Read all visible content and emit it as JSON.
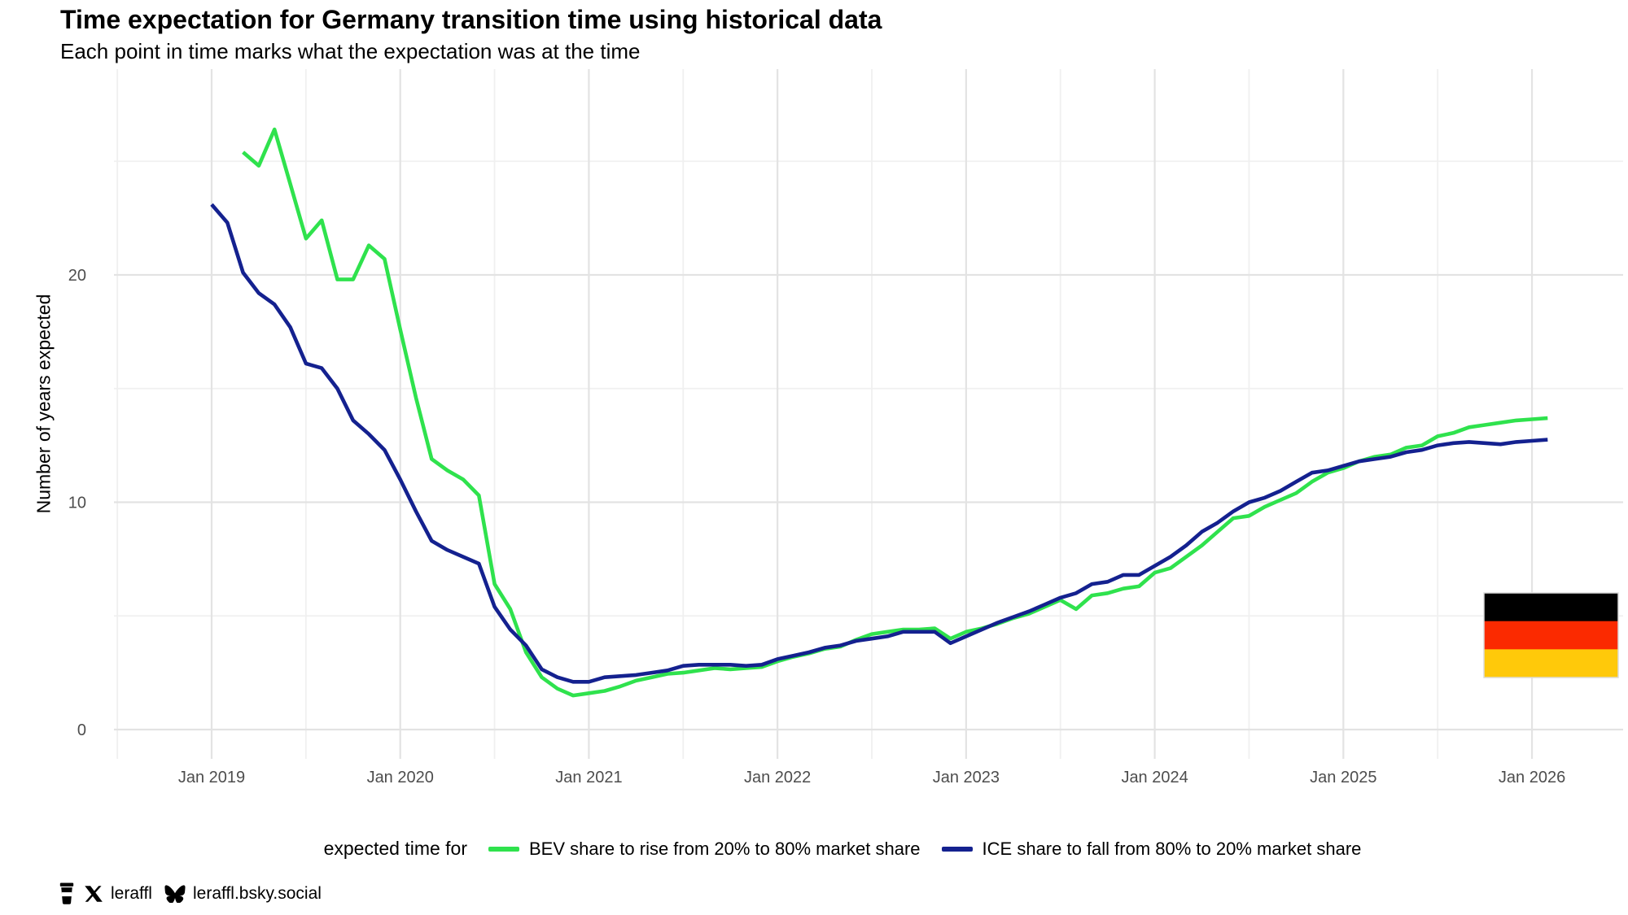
{
  "page": {
    "title": "Time expectation for Germany transition time using historical data",
    "subtitle": "Each point in time marks what the expectation was at the time"
  },
  "chart_data": {
    "type": "line",
    "title": "Time expectation for Germany transition time using historical data",
    "subtitle": "Each point in time marks what the expectation was at the time",
    "ylabel": "Number of years expected",
    "x_axis": {
      "tick_labels": [
        "Jan 2019",
        "Jan 2020",
        "Jan 2021",
        "Jan 2022",
        "Jan 2023",
        "Jan 2024",
        "Jan 2025",
        "Jan 2026"
      ],
      "minor_gridlines": "July of each year"
    },
    "y_axis": {
      "ticks": [
        0,
        10,
        20
      ],
      "minor": [
        5,
        15,
        25
      ],
      "range": [
        0,
        29
      ]
    },
    "grid": "light gray on white, ggplot-minimal style",
    "legend_position": "bottom",
    "series": [
      {
        "id": "bev",
        "name": "BEV share to rise from 20% to 80% market share",
        "color": "#2FE24D",
        "start_month": "2019-03",
        "end_month": "2026-02",
        "unit": "years",
        "monthly_values": [
          25.4,
          24.8,
          26.4,
          24.0,
          21.6,
          22.4,
          19.8,
          19.8,
          21.3,
          20.7,
          17.6,
          14.6,
          11.9,
          11.4,
          11.0,
          10.3,
          6.4,
          5.3,
          3.4,
          2.3,
          1.8,
          1.5,
          1.6,
          1.7,
          1.9,
          2.15,
          2.3,
          2.45,
          2.5,
          2.6,
          2.7,
          2.65,
          2.7,
          2.75,
          3.0,
          3.2,
          3.35,
          3.55,
          3.65,
          3.95,
          4.2,
          4.3,
          4.4,
          4.4,
          4.45,
          4.0,
          4.3,
          4.45,
          4.65,
          4.9,
          5.1,
          5.4,
          5.7,
          5.3,
          5.9,
          6.0,
          6.2,
          6.3,
          6.9,
          7.1,
          7.6,
          8.1,
          8.7,
          9.3,
          9.4,
          9.8,
          10.1,
          10.4,
          10.9,
          11.3,
          11.5,
          11.8,
          12.0,
          12.1,
          12.4,
          12.5,
          12.9,
          13.05,
          13.3,
          13.4,
          13.5,
          13.6,
          13.65,
          13.7
        ]
      },
      {
        "id": "ice",
        "name": "ICE share to fall from 80% to 20% market share",
        "color": "#14218F",
        "start_month": "2019-01",
        "end_month": "2026-02",
        "unit": "years",
        "monthly_values": [
          23.1,
          22.3,
          20.1,
          19.2,
          18.7,
          17.7,
          16.1,
          15.9,
          15.0,
          13.6,
          13.0,
          12.3,
          11.0,
          9.6,
          8.3,
          7.9,
          7.6,
          7.3,
          5.4,
          4.4,
          3.7,
          2.65,
          2.3,
          2.1,
          2.1,
          2.3,
          2.35,
          2.4,
          2.5,
          2.6,
          2.8,
          2.85,
          2.85,
          2.85,
          2.8,
          2.85,
          3.1,
          3.25,
          3.4,
          3.6,
          3.7,
          3.9,
          4.0,
          4.1,
          4.3,
          4.3,
          4.3,
          3.8,
          4.1,
          4.4,
          4.7,
          4.95,
          5.2,
          5.5,
          5.8,
          6.0,
          6.4,
          6.5,
          6.8,
          6.8,
          7.2,
          7.6,
          8.1,
          8.7,
          9.1,
          9.6,
          10.0,
          10.2,
          10.5,
          10.9,
          11.3,
          11.4,
          11.6,
          11.8,
          11.9,
          12.0,
          12.2,
          12.3,
          12.5,
          12.6,
          12.65,
          12.6,
          12.55,
          12.65,
          12.7,
          12.75
        ]
      }
    ],
    "annotation": {
      "type": "germany-flag",
      "colors": [
        "#000000",
        "#FB2A00",
        "#FFC90A"
      ]
    }
  },
  "legend": {
    "title": "expected time for",
    "entries": [
      {
        "label": "BEV share to rise from 20% to 80% market share",
        "color": "#2FE24D"
      },
      {
        "label": "ICE share to fall from 80% to 20% market share",
        "color": "#14218F"
      }
    ]
  },
  "footer": {
    "twitter_handle": "leraffl",
    "bluesky_handle": "leraffl.bsky.social"
  }
}
